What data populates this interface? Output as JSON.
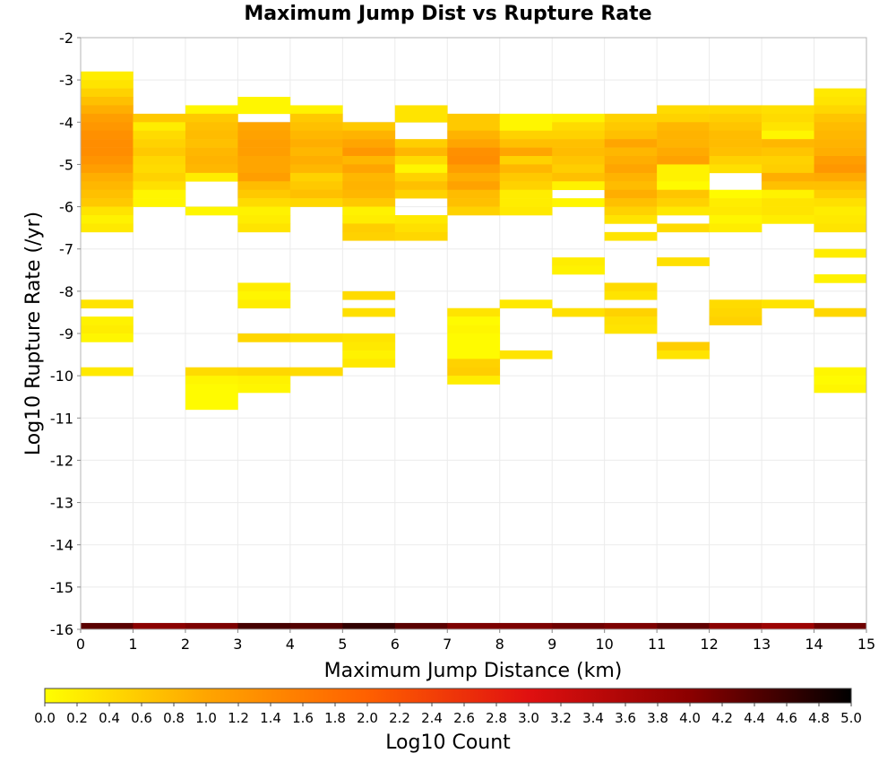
{
  "chart_data": {
    "type": "heatmap",
    "title": "Maximum Jump Dist vs Rupture Rate",
    "xlabel": "Maximum Jump Distance (km)",
    "ylabel": "Log10 Rupture Rate (/yr)",
    "xlim": [
      0,
      15
    ],
    "ylim": [
      -16,
      -2
    ],
    "x_ticks": [
      "0",
      "1",
      "2",
      "3",
      "4",
      "5",
      "6",
      "7",
      "8",
      "9",
      "10",
      "11",
      "12",
      "13",
      "14",
      "15"
    ],
    "y_ticks": [
      "-2",
      "-3",
      "-4",
      "-5",
      "-6",
      "-7",
      "-8",
      "-9",
      "-10",
      "-11",
      "-12",
      "-13",
      "-14",
      "-15",
      "-16"
    ],
    "x_bin_width": 1,
    "y_bin_height": 0.2,
    "grid": true,
    "colorbar": {
      "label": "Log10 Count",
      "range": [
        0,
        5
      ],
      "ticks": [
        "0.0",
        "0.2",
        "0.4",
        "0.6",
        "0.8",
        "1.0",
        "1.2",
        "1.4",
        "1.6",
        "1.8",
        "2.0",
        "2.2",
        "2.4",
        "2.6",
        "2.8",
        "3.0",
        "3.2",
        "3.4",
        "3.6",
        "3.8",
        "4.0",
        "4.2",
        "4.4",
        "4.6",
        "4.8",
        "5.0"
      ],
      "colors": [
        "#ffff00",
        "#ffa500",
        "#ff6000",
        "#e01010",
        "#8b0000",
        "#000000"
      ]
    },
    "column_intervals": [
      [
        [
          -3.0,
          0.2
        ],
        [
          -3.2,
          0.3
        ],
        [
          -3.4,
          0.5
        ],
        [
          -3.6,
          0.7
        ],
        [
          -3.8,
          0.9
        ],
        [
          -4.0,
          1.1
        ],
        [
          -4.2,
          1.2
        ],
        [
          -4.4,
          1.3
        ],
        [
          -4.6,
          1.35
        ],
        [
          -4.8,
          1.35
        ],
        [
          -5.0,
          1.25
        ],
        [
          -5.2,
          1.1
        ],
        [
          -5.4,
          0.9
        ],
        [
          -5.6,
          0.8
        ],
        [
          -5.8,
          0.7
        ],
        [
          -6.0,
          0.6
        ],
        [
          -6.2,
          0.3
        ],
        [
          -6.4,
          0.15
        ],
        [
          -6.6,
          0.25
        ],
        [
          -8.4,
          0.3
        ],
        [
          -8.8,
          0.15
        ],
        [
          -9.0,
          0.2
        ],
        [
          -9.2,
          0.1
        ],
        [
          -10.0,
          0.25
        ]
      ],
      [
        [
          -4.0,
          0.6
        ],
        [
          -4.2,
          0.2
        ],
        [
          -4.4,
          0.4
        ],
        [
          -4.6,
          0.5
        ],
        [
          -4.8,
          0.6
        ],
        [
          -5.0,
          0.45
        ],
        [
          -5.2,
          0.4
        ],
        [
          -5.4,
          0.5
        ],
        [
          -5.6,
          0.35
        ],
        [
          -5.8,
          0.1
        ],
        [
          -6.0,
          0.1
        ]
      ],
      [
        [
          -3.8,
          0.1
        ],
        [
          -4.0,
          0.6
        ],
        [
          -4.2,
          0.7
        ],
        [
          -4.4,
          0.75
        ],
        [
          -4.6,
          0.7
        ],
        [
          -4.8,
          0.8
        ],
        [
          -5.0,
          0.85
        ],
        [
          -5.2,
          0.8
        ],
        [
          -5.4,
          0.2
        ],
        [
          -6.2,
          0.1
        ],
        [
          -10.0,
          0.4
        ],
        [
          -10.2,
          0.1
        ],
        [
          -10.4,
          0.05
        ],
        [
          -10.6,
          0.05
        ],
        [
          -10.8,
          0.05
        ]
      ],
      [
        [
          -3.6,
          0.1
        ],
        [
          -3.8,
          0.1
        ],
        [
          -4.2,
          1.0
        ],
        [
          -4.4,
          1.05
        ],
        [
          -4.6,
          1.1
        ],
        [
          -4.8,
          1.1
        ],
        [
          -5.0,
          1.0
        ],
        [
          -5.2,
          1.0
        ],
        [
          -5.4,
          1.1
        ],
        [
          -5.6,
          0.75
        ],
        [
          -5.8,
          0.6
        ],
        [
          -6.0,
          0.4
        ],
        [
          -6.2,
          0.15
        ],
        [
          -6.4,
          0.2
        ],
        [
          -6.6,
          0.3
        ],
        [
          -8.0,
          0.2
        ],
        [
          -8.2,
          0.1
        ],
        [
          -8.4,
          0.2
        ],
        [
          -9.2,
          0.45
        ],
        [
          -10.0,
          0.45
        ],
        [
          -10.2,
          0.15
        ],
        [
          -10.4,
          0.1
        ]
      ],
      [
        [
          -3.8,
          0.15
        ],
        [
          -4.0,
          0.6
        ],
        [
          -4.2,
          0.7
        ],
        [
          -4.4,
          0.8
        ],
        [
          -4.6,
          0.9
        ],
        [
          -4.8,
          0.8
        ],
        [
          -5.0,
          0.9
        ],
        [
          -5.2,
          0.8
        ],
        [
          -5.4,
          0.5
        ],
        [
          -5.6,
          0.6
        ],
        [
          -5.8,
          0.7
        ],
        [
          -6.0,
          0.45
        ],
        [
          -9.2,
          0.35
        ],
        [
          -10.0,
          0.4
        ]
      ],
      [
        [
          -4.2,
          0.6
        ],
        [
          -4.4,
          0.85
        ],
        [
          -4.6,
          1.0
        ],
        [
          -4.8,
          1.2
        ],
        [
          -5.0,
          0.8
        ],
        [
          -5.2,
          1.0
        ],
        [
          -5.4,
          0.8
        ],
        [
          -5.6,
          0.85
        ],
        [
          -5.8,
          0.8
        ],
        [
          -6.0,
          0.6
        ],
        [
          -6.2,
          0.15
        ],
        [
          -6.4,
          0.2
        ],
        [
          -6.6,
          0.55
        ],
        [
          -6.8,
          0.5
        ],
        [
          -8.2,
          0.4
        ],
        [
          -8.6,
          0.35
        ],
        [
          -9.2,
          0.3
        ],
        [
          -9.4,
          0.25
        ],
        [
          -9.6,
          0.15
        ],
        [
          -9.8,
          0.25
        ]
      ],
      [
        [
          -3.8,
          0.3
        ],
        [
          -4.0,
          0.3
        ],
        [
          -4.6,
          0.55
        ],
        [
          -4.8,
          0.8
        ],
        [
          -5.0,
          0.4
        ],
        [
          -5.2,
          0.1
        ],
        [
          -5.4,
          0.5
        ],
        [
          -5.6,
          0.7
        ],
        [
          -5.8,
          0.5
        ],
        [
          -6.4,
          0.25
        ],
        [
          -6.6,
          0.35
        ],
        [
          -6.8,
          0.45
        ]
      ],
      [
        [
          -4.0,
          0.6
        ],
        [
          -4.2,
          0.6
        ],
        [
          -4.4,
          0.85
        ],
        [
          -4.6,
          1.0
        ],
        [
          -4.8,
          1.3
        ],
        [
          -5.0,
          1.35
        ],
        [
          -5.2,
          1.1
        ],
        [
          -5.4,
          0.9
        ],
        [
          -5.6,
          1.05
        ],
        [
          -5.8,
          0.75
        ],
        [
          -6.0,
          0.7
        ],
        [
          -6.2,
          0.5
        ],
        [
          -8.6,
          0.3
        ],
        [
          -8.8,
          0.05
        ],
        [
          -9.0,
          0.1
        ],
        [
          -9.2,
          0.05
        ],
        [
          -9.4,
          0.05
        ],
        [
          -9.6,
          0.05
        ],
        [
          -9.8,
          0.5
        ],
        [
          -10.0,
          0.55
        ],
        [
          -10.2,
          0.2
        ]
      ],
      [
        [
          -4.0,
          0.1
        ],
        [
          -4.2,
          0.1
        ],
        [
          -4.4,
          0.5
        ],
        [
          -4.6,
          0.7
        ],
        [
          -4.8,
          1.0
        ],
        [
          -5.0,
          0.5
        ],
        [
          -5.2,
          0.8
        ],
        [
          -5.4,
          0.6
        ],
        [
          -5.6,
          0.5
        ],
        [
          -5.8,
          0.2
        ],
        [
          -6.0,
          0.2
        ],
        [
          -6.2,
          0.25
        ],
        [
          -8.4,
          0.25
        ],
        [
          -9.6,
          0.3
        ]
      ],
      [
        [
          -4.0,
          0.15
        ],
        [
          -4.2,
          0.4
        ],
        [
          -4.4,
          0.5
        ],
        [
          -4.6,
          0.7
        ],
        [
          -4.8,
          0.75
        ],
        [
          -5.0,
          0.65
        ],
        [
          -5.2,
          0.55
        ],
        [
          -5.4,
          0.7
        ],
        [
          -5.6,
          0.15
        ],
        [
          -6.0,
          0.1
        ],
        [
          -7.4,
          0.2
        ],
        [
          -7.6,
          0.15
        ],
        [
          -8.6,
          0.35
        ]
      ],
      [
        [
          -4.0,
          0.5
        ],
        [
          -4.2,
          0.6
        ],
        [
          -4.4,
          0.7
        ],
        [
          -4.6,
          1.0
        ],
        [
          -4.8,
          0.8
        ],
        [
          -5.0,
          0.9
        ],
        [
          -5.2,
          1.0
        ],
        [
          -5.4,
          0.85
        ],
        [
          -5.6,
          0.75
        ],
        [
          -5.8,
          0.9
        ],
        [
          -6.0,
          0.7
        ],
        [
          -6.2,
          0.5
        ],
        [
          -6.4,
          0.3
        ],
        [
          -6.8,
          0.3
        ],
        [
          -8.0,
          0.4
        ],
        [
          -8.2,
          0.3
        ],
        [
          -8.6,
          0.5
        ],
        [
          -8.8,
          0.35
        ],
        [
          -9.0,
          0.3
        ]
      ],
      [
        [
          -3.8,
          0.4
        ],
        [
          -4.0,
          0.5
        ],
        [
          -4.2,
          0.8
        ],
        [
          -4.4,
          0.85
        ],
        [
          -4.6,
          0.85
        ],
        [
          -4.8,
          0.95
        ],
        [
          -5.0,
          1.05
        ],
        [
          -5.2,
          0.15
        ],
        [
          -5.4,
          0.15
        ],
        [
          -5.6,
          0.05
        ],
        [
          -5.8,
          0.65
        ],
        [
          -6.0,
          0.5
        ],
        [
          -6.2,
          0.25
        ],
        [
          -6.6,
          0.4
        ],
        [
          -7.4,
          0.35
        ],
        [
          -9.4,
          0.55
        ],
        [
          -9.6,
          0.3
        ]
      ],
      [
        [
          -3.8,
          0.4
        ],
        [
          -4.0,
          0.55
        ],
        [
          -4.2,
          0.65
        ],
        [
          -4.4,
          0.75
        ],
        [
          -4.6,
          0.75
        ],
        [
          -4.8,
          0.7
        ],
        [
          -5.0,
          0.5
        ],
        [
          -5.2,
          0.35
        ],
        [
          -5.8,
          0.05
        ],
        [
          -6.0,
          0.2
        ],
        [
          -6.2,
          0.25
        ],
        [
          -6.4,
          0.1
        ],
        [
          -6.6,
          0.2
        ],
        [
          -8.4,
          0.4
        ],
        [
          -8.6,
          0.45
        ],
        [
          -8.8,
          0.5
        ]
      ],
      [
        [
          -3.8,
          0.35
        ],
        [
          -4.0,
          0.4
        ],
        [
          -4.2,
          0.3
        ],
        [
          -4.4,
          0.1
        ],
        [
          -4.6,
          0.8
        ],
        [
          -4.8,
          0.65
        ],
        [
          -5.0,
          0.5
        ],
        [
          -5.2,
          0.55
        ],
        [
          -5.4,
          0.9
        ],
        [
          -5.6,
          0.7
        ],
        [
          -5.8,
          0.15
        ],
        [
          -6.0,
          0.3
        ],
        [
          -6.2,
          0.3
        ],
        [
          -6.4,
          0.2
        ],
        [
          -8.4,
          0.3
        ]
      ],
      [
        [
          -3.4,
          0.25
        ],
        [
          -3.6,
          0.3
        ],
        [
          -3.8,
          0.45
        ],
        [
          -4.0,
          0.65
        ],
        [
          -4.2,
          0.75
        ],
        [
          -4.4,
          0.8
        ],
        [
          -4.6,
          0.85
        ],
        [
          -4.8,
          0.9
        ],
        [
          -5.0,
          1.1
        ],
        [
          -5.2,
          1.2
        ],
        [
          -5.4,
          0.95
        ],
        [
          -5.6,
          0.7
        ],
        [
          -5.8,
          0.55
        ],
        [
          -6.0,
          0.35
        ],
        [
          -6.2,
          0.2
        ],
        [
          -6.4,
          0.25
        ],
        [
          -6.6,
          0.3
        ],
        [
          -7.2,
          0.2
        ],
        [
          -7.8,
          0.15
        ],
        [
          -8.6,
          0.45
        ],
        [
          -10.0,
          0.1
        ],
        [
          -10.2,
          0.05
        ],
        [
          -10.4,
          0.1
        ]
      ]
    ],
    "bottom_row_values": [
      4.35,
      4.0,
      4.1,
      4.5,
      4.4,
      4.65,
      4.35,
      4.1,
      4.1,
      4.2,
      4.1,
      4.3,
      4.0,
      3.8,
      4.2
    ]
  }
}
